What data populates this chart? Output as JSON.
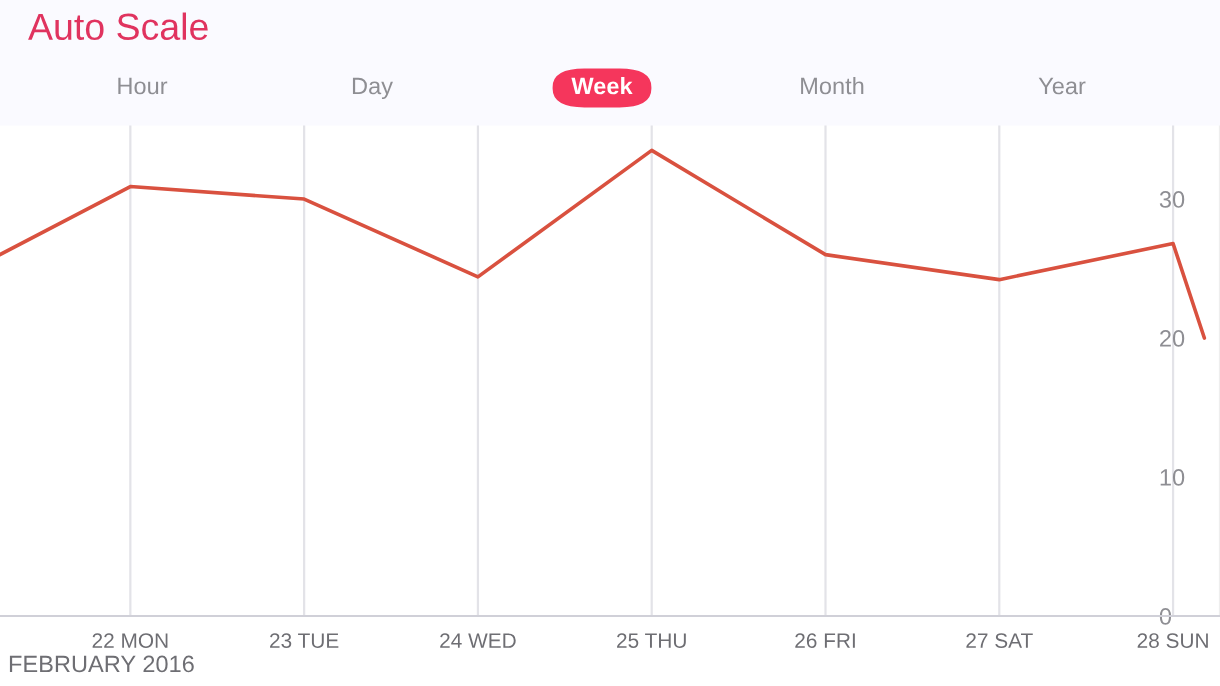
{
  "chart_data": {
    "type": "line",
    "title": "Auto Scale",
    "annotations": [
      "Hour",
      "Day",
      "Week",
      "Month",
      "Year",
      "FEBRUARY 2016"
    ],
    "x": [
      21.25,
      22,
      23,
      24,
      25,
      26,
      27,
      28,
      28.18
    ],
    "series": [
      {
        "color": "#d9513f",
        "values": [
          26.0,
          30.9,
          30.0,
          24.4,
          33.5,
          26.0,
          24.2,
          26.8,
          20.0
        ]
      }
    ],
    "xlim": [
      21.25,
      28.27
    ],
    "xticks": [
      {
        "value": 22,
        "label": "22 MON"
      },
      {
        "value": 23,
        "label": "23 TUE"
      },
      {
        "value": 24,
        "label": "24 WED"
      },
      {
        "value": 25,
        "label": "25 THU"
      },
      {
        "value": 26,
        "label": "26 FRI"
      },
      {
        "value": 27,
        "label": "27 SAT"
      },
      {
        "value": 28,
        "label": "28 SUN"
      }
    ],
    "ylim": [
      0,
      35.4
    ],
    "yticks": [
      0,
      10,
      20,
      30
    ],
    "grid": "x",
    "marker": "none",
    "line_style": "solid"
  }
}
